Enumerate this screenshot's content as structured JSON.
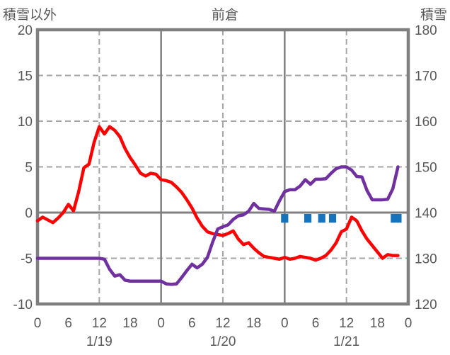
{
  "chart_data": {
    "type": "line",
    "title": "前倉",
    "left_axis": {
      "title": "積雪以外",
      "max": 20,
      "min": -10,
      "ticks": [
        20,
        15,
        10,
        5,
        0,
        -5,
        -10
      ]
    },
    "right_axis": {
      "title": "積雪",
      "max": 180,
      "min": 120,
      "ticks": [
        180,
        170,
        160,
        150,
        140,
        130,
        120
      ]
    },
    "x_axis": {
      "hours_span": 72,
      "tick_hours": [
        0,
        6,
        12,
        18,
        24,
        30,
        36,
        42,
        48,
        54,
        60,
        66,
        72
      ],
      "tick_labels": [
        "0",
        "6",
        "12",
        "18",
        "0",
        "6",
        "12",
        "18",
        "0",
        "6",
        "12",
        "18",
        "0"
      ],
      "date_labels": [
        {
          "label": "1/19",
          "hour": 12
        },
        {
          "label": "1/20",
          "hour": 36
        },
        {
          "label": "1/21",
          "hour": 60
        }
      ]
    },
    "gridlines": {
      "dashed_horizontal_left_values": [
        15,
        10,
        5,
        -5
      ],
      "solid_horizontal_left_values": [
        0
      ],
      "dashed_vertical_hours": [
        12,
        36,
        60
      ],
      "solid_vertical_hours": [
        24,
        48
      ]
    },
    "series": [
      {
        "id": "red-line",
        "axis": "left",
        "color": "#FF0000",
        "hour_start": 0,
        "hour_step": 1,
        "values": [
          -0.9,
          -0.5,
          -0.8,
          -1.1,
          -0.6,
          0.0,
          0.9,
          0.2,
          2.3,
          4.9,
          5.3,
          7.7,
          9.4,
          8.6,
          9.4,
          9.0,
          8.3,
          7.0,
          6.0,
          5.2,
          4.3,
          4.0,
          4.3,
          4.2,
          3.6,
          3.5,
          3.3,
          2.8,
          2.2,
          1.4,
          0.5,
          -0.6,
          -1.5,
          -2.1,
          -2.3,
          -2.4,
          -2.5,
          -2.3,
          -2.0,
          -2.9,
          -3.5,
          -3.3,
          -3.9,
          -4.4,
          -4.8,
          -4.9,
          -5.0,
          -5.1,
          -4.9,
          -5.1,
          -5.0,
          -4.8,
          -4.9,
          -5.0,
          -5.2,
          -5.0,
          -4.7,
          -4.1,
          -3.3,
          -2.1,
          -1.8,
          -0.5,
          -0.9,
          -2.0,
          -2.9,
          -3.6,
          -4.3,
          -5.0,
          -4.6,
          -4.7,
          -4.7
        ]
      },
      {
        "id": "purple-line",
        "axis": "right",
        "color": "#7030A0",
        "hour_start": 0,
        "hour_step": 1,
        "values": [
          130,
          130,
          130,
          130,
          130,
          130,
          130,
          130,
          130,
          130,
          130,
          130,
          130,
          129.8,
          127.6,
          126.1,
          126.4,
          125.2,
          125,
          125,
          125,
          125,
          125,
          125,
          125,
          124.4,
          124.3,
          124.4,
          125.8,
          127.3,
          128.7,
          127.9,
          128.7,
          130.2,
          133.5,
          136.4,
          136.9,
          137.3,
          138.5,
          139.3,
          139.5,
          140.3,
          142.0,
          140.9,
          140.8,
          140.7,
          140.3,
          142.6,
          144.6,
          145.0,
          145.0,
          145.8,
          147.2,
          146.2,
          147.3,
          147.3,
          147.4,
          148.6,
          149.6,
          150.0,
          150.0,
          149.3,
          147.9,
          147.8,
          144.8,
          142.8,
          142.8,
          142.8,
          142.9,
          145.2,
          150.0
        ]
      }
    ],
    "event_markers": {
      "color": "#1774BC",
      "axis": "left",
      "top_value": 0,
      "height_units": 0.95,
      "segments_hours": [
        [
          47.3,
          48.7
        ],
        [
          51.8,
          53.2
        ],
        [
          54.5,
          55.9
        ],
        [
          56.6,
          58.0
        ],
        [
          68.6,
          70.7
        ]
      ]
    },
    "colors": {
      "border": "#7F7F7F",
      "grid_dashed": "#A6A6A6",
      "grid_solid": "#808080",
      "text": "#595959",
      "background": "#FFFFFF"
    }
  }
}
